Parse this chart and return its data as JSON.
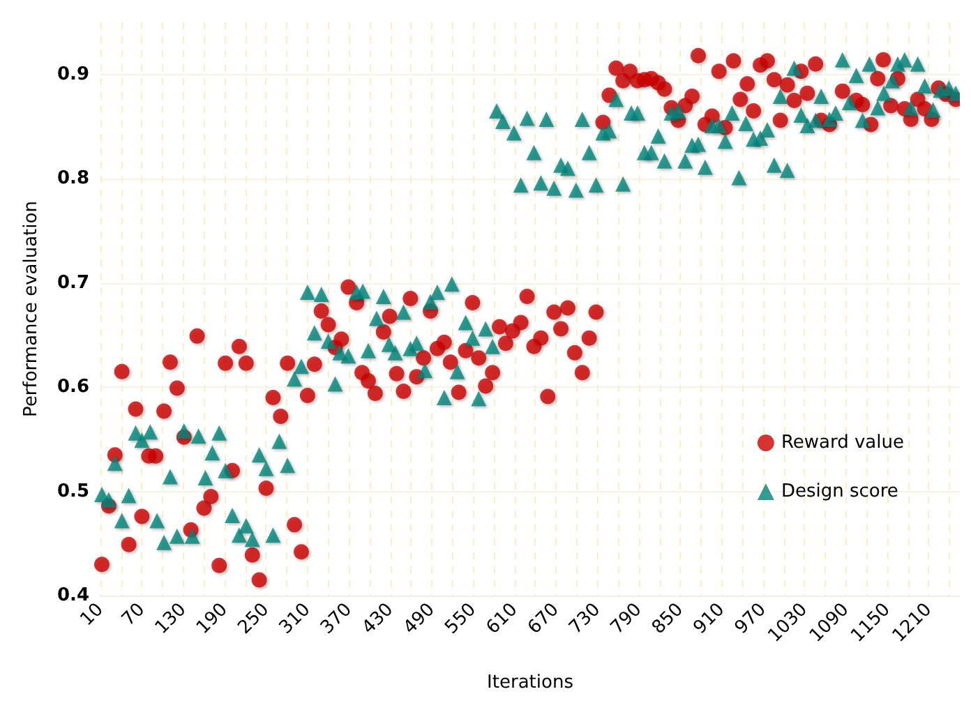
{
  "chart_data": {
    "type": "scatter",
    "xlabel": "Iterations",
    "ylabel": "Performance evaluation",
    "xlim": [
      10,
      1255
    ],
    "ylim": [
      0.4,
      0.95
    ],
    "xticks": [
      10,
      {
        "value": 40,
        "label": null
      },
      70,
      {
        "value": 100,
        "label": null
      },
      130,
      {
        "value": 160,
        "label": null
      },
      190,
      {
        "value": 220,
        "label": null
      },
      250,
      {
        "value": 280,
        "label": null
      },
      310,
      {
        "value": 340,
        "label": null
      },
      370,
      {
        "value": 400,
        "label": null
      },
      430,
      {
        "value": 460,
        "label": null
      },
      490,
      {
        "value": 520,
        "label": null
      },
      550,
      {
        "value": 580,
        "label": null
      },
      610,
      {
        "value": 640,
        "label": null
      },
      670,
      {
        "value": 700,
        "label": null
      },
      730,
      {
        "value": 760,
        "label": null
      },
      790,
      {
        "value": 820,
        "label": null
      },
      850,
      {
        "value": 880,
        "label": null
      },
      910,
      {
        "value": 940,
        "label": null
      },
      970,
      {
        "value": 1000,
        "label": null
      },
      1030,
      {
        "value": 1060,
        "label": null
      },
      1090,
      {
        "value": 1120,
        "label": null
      },
      1150,
      {
        "value": 1180,
        "label": null
      },
      1210,
      {
        "value": 1240,
        "label": null
      }
    ],
    "yticks": [
      0.4,
      0.5,
      0.6,
      0.7,
      0.8,
      0.9
    ],
    "grid": true,
    "legend": "right",
    "series": [
      {
        "name": "Reward value",
        "color": "#cc0000",
        "marker": "circle",
        "x": [
          12,
          22,
          31,
          41,
          51,
          61,
          70,
          80,
          90,
          102,
          111,
          121,
          131,
          141,
          150,
          160,
          170,
          182,
          191,
          201,
          211,
          221,
          230,
          240,
          250,
          260,
          271,
          281,
          291,
          301,
          310,
          320,
          330,
          340,
          350,
          359,
          369,
          381,
          389,
          398,
          408,
          420,
          429,
          439,
          449,
          459,
          468,
          478,
          488,
          498,
          508,
          517,
          529,
          539,
          549,
          558,
          568,
          578,
          588,
          597,
          607,
          619,
          628,
          638,
          648,
          658,
          667,
          677,
          687,
          697,
          708,
          718,
          728,
          738,
          747,
          757,
          767,
          777,
          788,
          798,
          808,
          818,
          827,
          837,
          847,
          857,
          867,
          876,
          886,
          896,
          906,
          915,
          927,
          937,
          947,
          956,
          966,
          976,
          986,
          995,
          1005,
          1015,
          1025,
          1034,
          1046,
          1054,
          1066,
          1085,
          1105,
          1114,
          1126,
          1136,
          1144,
          1155,
          1165,
          1175,
          1184,
          1194,
          1204,
          1214,
          1224,
          1235,
          1249
        ],
        "values": [
          0.43,
          0.486,
          0.535,
          0.615,
          0.449,
          0.579,
          0.476,
          0.534,
          0.534,
          0.577,
          0.624,
          0.599,
          0.552,
          0.463,
          0.649,
          0.484,
          0.495,
          0.429,
          0.623,
          0.52,
          0.639,
          0.623,
          0.439,
          0.415,
          0.503,
          0.59,
          0.572,
          0.623,
          0.468,
          0.442,
          0.592,
          0.622,
          0.673,
          0.66,
          0.638,
          0.646,
          0.696,
          0.681,
          0.614,
          0.606,
          0.594,
          0.653,
          0.668,
          0.613,
          0.596,
          0.685,
          0.61,
          0.628,
          0.673,
          0.637,
          0.643,
          0.624,
          0.595,
          0.635,
          0.681,
          0.628,
          0.601,
          0.614,
          0.658,
          0.642,
          0.654,
          0.662,
          0.687,
          0.639,
          0.647,
          0.591,
          0.672,
          0.656,
          0.676,
          0.633,
          0.614,
          0.647,
          0.672,
          0.854,
          0.88,
          0.906,
          0.894,
          0.903,
          0.894,
          0.895,
          0.896,
          0.892,
          0.886,
          0.868,
          0.856,
          0.87,
          0.879,
          0.918,
          0.852,
          0.86,
          0.903,
          0.849,
          0.913,
          0.876,
          0.891,
          0.865,
          0.909,
          0.913,
          0.895,
          0.856,
          0.89,
          0.875,
          0.903,
          0.882,
          0.91,
          0.856,
          0.852,
          0.884,
          0.875,
          0.871,
          0.852,
          0.896,
          0.914,
          0.87,
          0.896,
          0.867,
          0.857,
          0.876,
          0.867,
          0.857,
          0.887,
          0.881,
          0.876
        ]
      },
      {
        "name": "Design score",
        "color": "#00857a",
        "marker": "triangle",
        "x": [
          12,
          22,
          31,
          41,
          51,
          61,
          70,
          82,
          92,
          102,
          111,
          121,
          131,
          143,
          152,
          162,
          172,
          182,
          191,
          201,
          211,
          221,
          230,
          240,
          250,
          260,
          269,
          281,
          291,
          301,
          310,
          320,
          330,
          340,
          350,
          357,
          369,
          381,
          390,
          398,
          410,
          420,
          428,
          437,
          449,
          459,
          468,
          480,
          488,
          498,
          508,
          519,
          527,
          539,
          549,
          558,
          568,
          578,
          584,
          593,
          609,
          619,
          628,
          638,
          648,
          656,
          667,
          677,
          687,
          699,
          708,
          718,
          728,
          738,
          747,
          757,
          767,
          779,
          788,
          798,
          808,
          818,
          827,
          837,
          847,
          857,
          867,
          876,
          886,
          896,
          906,
          915,
          925,
          935,
          945,
          956,
          966,
          976,
          986,
          995,
          1005,
          1015,
          1025,
          1034,
          1046,
          1054,
          1066,
          1075,
          1085,
          1095,
          1105,
          1114,
          1124,
          1136,
          1145,
          1157,
          1165,
          1175,
          1184,
          1194,
          1204,
          1216,
          1227,
          1239,
          1249
        ],
        "values": [
          0.497,
          0.492,
          0.527,
          0.472,
          0.496,
          0.556,
          0.549,
          0.557,
          0.472,
          0.451,
          0.514,
          0.457,
          0.558,
          0.457,
          0.553,
          0.513,
          0.537,
          0.556,
          0.52,
          0.477,
          0.458,
          0.467,
          0.454,
          0.535,
          0.522,
          0.458,
          0.548,
          0.525,
          0.608,
          0.62,
          0.691,
          0.652,
          0.689,
          0.644,
          0.603,
          0.633,
          0.63,
          0.691,
          0.692,
          0.635,
          0.666,
          0.687,
          0.641,
          0.633,
          0.672,
          0.637,
          0.642,
          0.616,
          0.682,
          0.691,
          0.59,
          0.699,
          0.615,
          0.662,
          0.647,
          0.589,
          0.656,
          0.639,
          0.865,
          0.855,
          0.844,
          0.794,
          0.858,
          0.825,
          0.796,
          0.857,
          0.791,
          0.813,
          0.81,
          0.789,
          0.857,
          0.825,
          0.794,
          0.844,
          0.846,
          0.876,
          0.795,
          0.863,
          0.863,
          0.825,
          0.825,
          0.841,
          0.817,
          0.863,
          0.865,
          0.817,
          0.832,
          0.833,
          0.811,
          0.851,
          0.851,
          0.836,
          0.863,
          0.801,
          0.853,
          0.838,
          0.839,
          0.847,
          0.813,
          0.879,
          0.808,
          0.906,
          0.861,
          0.851,
          0.856,
          0.879,
          0.857,
          0.863,
          0.914,
          0.873,
          0.899,
          0.856,
          0.91,
          0.868,
          0.882,
          0.894,
          0.91,
          0.914,
          0.868,
          0.91,
          0.889,
          0.866,
          0.885,
          0.887,
          0.882
        ]
      }
    ]
  }
}
